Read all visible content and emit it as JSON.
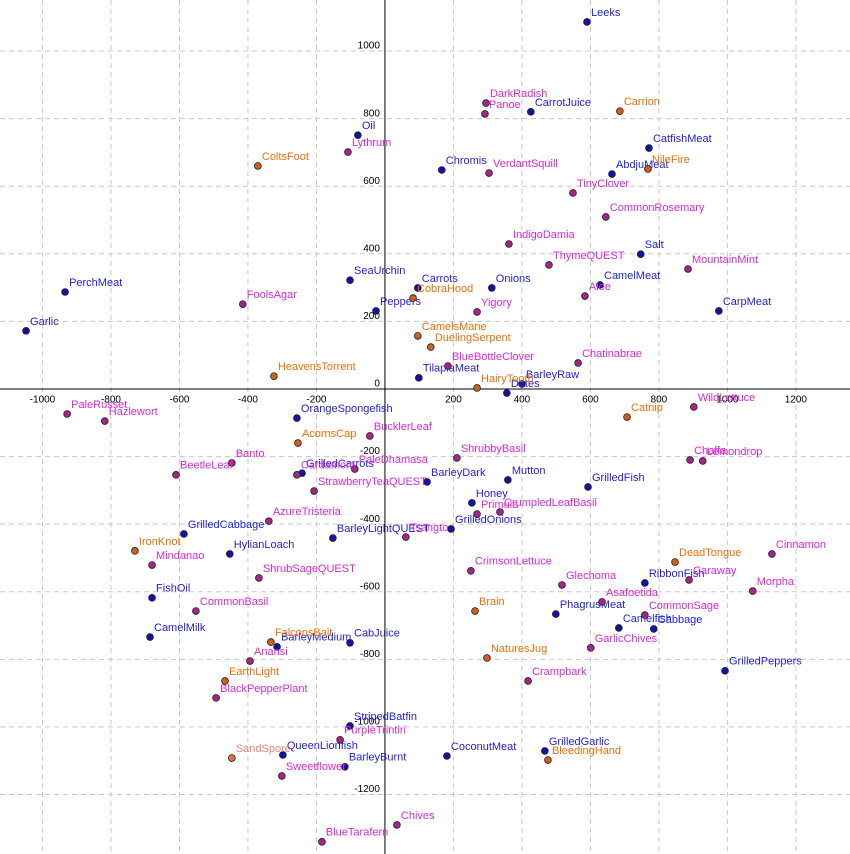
{
  "chart_data": {
    "type": "scatter",
    "xlim": [
      -1124,
      1358
    ],
    "ylim": [
      -1376,
      1151
    ],
    "xticks": [
      -1000,
      -800,
      -600,
      -400,
      -200,
      200,
      400,
      600,
      800,
      1000,
      1200
    ],
    "yticks": [
      -1200,
      -1000,
      -800,
      -600,
      -400,
      -200,
      0,
      200,
      400,
      600,
      800,
      1000
    ],
    "grid": true,
    "series": [
      {
        "color": "#1f1fd6",
        "marker_color": "#1212a8",
        "points": [
          {
            "label": "Leeks",
            "x": 590,
            "y": 1086
          },
          {
            "label": "CarrotJuice",
            "x": 426,
            "y": 820
          },
          {
            "label": "Oil",
            "x": -79,
            "y": 751
          },
          {
            "label": "CatfishMeat",
            "x": 771,
            "y": 713
          },
          {
            "label": "Chromis",
            "x": 166,
            "y": 648
          },
          {
            "label": "AbdjuMeat",
            "x": 663,
            "y": 636
          },
          {
            "label": "Salt",
            "x": 747,
            "y": 399
          },
          {
            "label": "SeaUrchin",
            "x": -102,
            "y": 322
          },
          {
            "label": "Carrots",
            "x": 96,
            "y": 299
          },
          {
            "label": "Onions",
            "x": 312,
            "y": 299
          },
          {
            "label": "PerchMeat",
            "x": -934,
            "y": 287
          },
          {
            "label": "CamelMeat",
            "x": 628,
            "y": 308
          },
          {
            "label": "CarpMeat",
            "x": 975,
            "y": 231
          },
          {
            "label": "Peppers",
            "x": -26,
            "y": 231
          },
          {
            "label": "Garlic",
            "x": -1048,
            "y": 172
          },
          {
            "label": "TilapiaMeat",
            "x": 99,
            "y": 33
          },
          {
            "label": "BarleyRaw",
            "x": 400,
            "y": 15
          },
          {
            "label": "Dates",
            "x": 356,
            "y": -12
          },
          {
            "label": "OrangeSpongefish",
            "x": -257,
            "y": -86
          },
          {
            "label": "GrilledCarrots",
            "x": -242,
            "y": -249
          },
          {
            "label": "Mutton",
            "x": 359,
            "y": -269
          },
          {
            "label": "GrilledFish",
            "x": 593,
            "y": -290
          },
          {
            "label": "BarleyDark",
            "x": 123,
            "y": -275
          },
          {
            "label": "Honey",
            "x": 254,
            "y": -337
          },
          {
            "label": "GrilledCabbage",
            "x": -587,
            "y": -429
          },
          {
            "label": "GrilledOnions",
            "x": 193,
            "y": -414
          },
          {
            "label": "HylianLoach",
            "x": -453,
            "y": -488
          },
          {
            "label": "BarleyLightQUEST",
            "x": -152,
            "y": -441
          },
          {
            "label": "RibbonFish",
            "x": 759,
            "y": -574
          },
          {
            "label": "FishOil",
            "x": -680,
            "y": -618
          },
          {
            "label": "PhagrusMeat",
            "x": 499,
            "y": -666
          },
          {
            "label": "Camelfish",
            "x": 683,
            "y": -707
          },
          {
            "label": "Cabbage",
            "x": 785,
            "y": -710
          },
          {
            "label": "CamelMilk",
            "x": -686,
            "y": -734
          },
          {
            "label": "CabJuice",
            "x": -102,
            "y": -751
          },
          {
            "label": "BarleyMedium",
            "x": -315,
            "y": -763
          },
          {
            "label": "GrilledPeppers",
            "x": 993,
            "y": -834
          },
          {
            "label": "StripedBatfin",
            "x": -102,
            "y": -997
          },
          {
            "label": "GrilledGarlic",
            "x": 467,
            "y": -1071
          },
          {
            "label": "QueenLionfish",
            "x": -298,
            "y": -1083
          },
          {
            "label": "CoconutMeat",
            "x": 181,
            "y": -1086
          },
          {
            "label": "BarleyBurnt",
            "x": -117,
            "y": -1118
          }
        ]
      },
      {
        "color": "#d62ad6",
        "marker_color": "#a8238c",
        "points": [
          {
            "label": "DarkRadish",
            "x": 295,
            "y": 846
          },
          {
            "label": "Panoe",
            "x": 292,
            "y": 814
          },
          {
            "label": "Lythrum",
            "x": -108,
            "y": 701
          },
          {
            "label": "VerdantSquill",
            "x": 304,
            "y": 639
          },
          {
            "label": "TinyClover",
            "x": 549,
            "y": 580
          },
          {
            "label": "CommonRosemary",
            "x": 645,
            "y": 509
          },
          {
            "label": "IndigoDamia",
            "x": 362,
            "y": 429
          },
          {
            "label": "ThymeQUEST",
            "x": 479,
            "y": 367
          },
          {
            "label": "MountainMint",
            "x": 885,
            "y": 355
          },
          {
            "label": "Aloe",
            "x": 584,
            "y": 275
          },
          {
            "label": "Yigory",
            "x": 269,
            "y": 228
          },
          {
            "label": "FoolsAgar",
            "x": -415,
            "y": 251
          },
          {
            "label": "BlueBottleClover",
            "x": 184,
            "y": 68
          },
          {
            "label": "Chatinabrae",
            "x": 564,
            "y": 77
          },
          {
            "label": "PaleRusset",
            "x": -928,
            "y": -74
          },
          {
            "label": "Hazlewort",
            "x": -818,
            "y": -95
          },
          {
            "label": "WildLettuce",
            "x": 902,
            "y": -53
          },
          {
            "label": "BucklerLeaf",
            "x": -44,
            "y": -139
          },
          {
            "label": "ShrubbyBasil",
            "x": 210,
            "y": -204
          },
          {
            "label": "Banto",
            "x": -447,
            "y": -219
          },
          {
            "label": "Chaffa",
            "x": 891,
            "y": -210
          },
          {
            "label": "Lemondrop",
            "x": 928,
            "y": -213
          },
          {
            "label": "PaleDhamasa",
            "x": -88,
            "y": -237
          },
          {
            "label": "BeetleLeaf",
            "x": -610,
            "y": -254
          },
          {
            "label": "Cardamom",
            "x": -257,
            "y": -254
          },
          {
            "label": "StrawberryTeaQUEST",
            "x": -207,
            "y": -302
          },
          {
            "label": "CrumpledLeafBasil",
            "x": 336,
            "y": -364
          },
          {
            "label": "Primula",
            "x": 269,
            "y": -370
          },
          {
            "label": "AzureTristeria",
            "x": -339,
            "y": -391
          },
          {
            "label": "Tsangto",
            "x": 61,
            "y": -438
          },
          {
            "label": "Cinnamon",
            "x": 1130,
            "y": -488
          },
          {
            "label": "Mindanao",
            "x": -680,
            "y": -521
          },
          {
            "label": "CrimsonLettuce",
            "x": 251,
            "y": -538
          },
          {
            "label": "ShrubSageQUEST",
            "x": -368,
            "y": -559
          },
          {
            "label": "Caraway",
            "x": 888,
            "y": -565
          },
          {
            "label": "Glechoma",
            "x": 517,
            "y": -580
          },
          {
            "label": "Morpha",
            "x": 1074,
            "y": -598
          },
          {
            "label": "CommonBasil",
            "x": -552,
            "y": -657
          },
          {
            "label": "Asafoetida",
            "x": 634,
            "y": -630
          },
          {
            "label": "CommonSage",
            "x": 759,
            "y": -669
          },
          {
            "label": "GarlicChives",
            "x": 601,
            "y": -766
          },
          {
            "label": "Anansi",
            "x": -394,
            "y": -805
          },
          {
            "label": "Crampbark",
            "x": 418,
            "y": -864
          },
          {
            "label": "BlackPepperPlant",
            "x": -493,
            "y": -914
          },
          {
            "label": "PurpleTrintiri",
            "x": -131,
            "y": -1038
          },
          {
            "label": "Sweetflower",
            "x": -301,
            "y": -1145
          },
          {
            "label": "Chives",
            "x": 35,
            "y": -1290
          },
          {
            "label": "BlueTarafern",
            "x": -184,
            "y": -1340
          }
        ]
      },
      {
        "color": "#e8700a",
        "marker_color": "#cf5f1a",
        "points": [
          {
            "label": "Carrion",
            "x": 686,
            "y": 822
          },
          {
            "label": "ColtsFoot",
            "x": -371,
            "y": 660
          },
          {
            "label": "NileFire",
            "x": 768,
            "y": 651
          },
          {
            "label": "CobraHood",
            "x": 82,
            "y": 269
          },
          {
            "label": "CamelsMane",
            "x": 96,
            "y": 157
          },
          {
            "label": "DuelingSerpent",
            "x": 134,
            "y": 124
          },
          {
            "label": "HeavensTorrent",
            "x": -324,
            "y": 38
          },
          {
            "label": "HairyTooth",
            "x": 269,
            "y": 3
          },
          {
            "label": "Catnip",
            "x": 707,
            "y": -83
          },
          {
            "label": "AcornsCap",
            "x": -254,
            "y": -160
          },
          {
            "label": "IronKnot",
            "x": -730,
            "y": -479
          },
          {
            "label": "DeadTongue",
            "x": 847,
            "y": -512
          },
          {
            "label": "Brain",
            "x": 263,
            "y": -657
          },
          {
            "label": "FalconsBait",
            "x": -333,
            "y": -749
          },
          {
            "label": "NaturesJug",
            "x": 298,
            "y": -796
          },
          {
            "label": "EarthLight",
            "x": -467,
            "y": -864
          },
          {
            "label": "BleedingHand",
            "x": 476,
            "y": -1098
          }
        ]
      },
      {
        "color": "#f08070",
        "marker_color": "#e0704a",
        "points": [
          {
            "label": "SandSpore",
            "x": -447,
            "y": -1092
          }
        ]
      }
    ]
  }
}
